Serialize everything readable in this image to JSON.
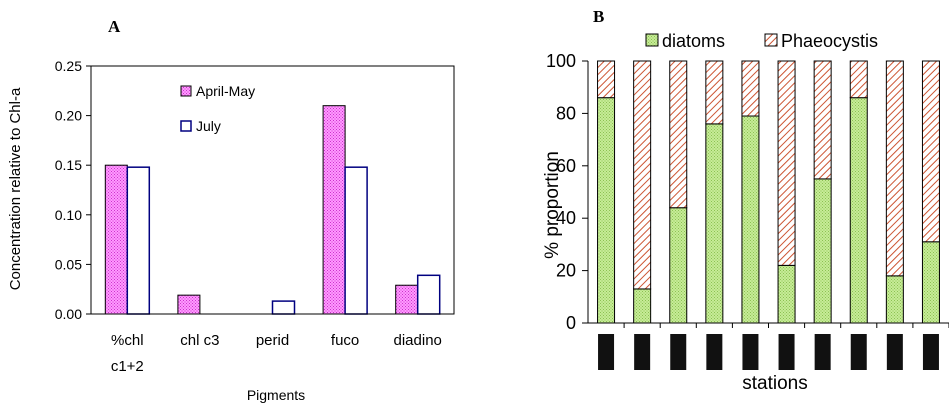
{
  "chart_data": [
    {
      "panel": "A",
      "type": "bar",
      "ylabel": "Concentration relative to Chl-a",
      "xlabel": "Pigments",
      "ylim": [
        0,
        0.25
      ],
      "yticks": [
        "0.00",
        "0.05",
        "0.10",
        "0.15",
        "0.20",
        "0.25"
      ],
      "categories": [
        [
          "%chl",
          "c1+2"
        ],
        [
          "chl c3"
        ],
        [
          "perid"
        ],
        [
          "fuco"
        ],
        [
          "diadino"
        ]
      ],
      "series": [
        {
          "name": "April-May",
          "color": "#ff66ff",
          "pattern": "dotted",
          "values": [
            0.15,
            0.019,
            0.0,
            0.21,
            0.029
          ]
        },
        {
          "name": "July",
          "color": "#000080",
          "pattern": "open",
          "values": [
            0.148,
            0.0,
            0.013,
            0.148,
            0.039
          ]
        }
      ],
      "legend_position": "upper-center inside plot"
    },
    {
      "panel": "B",
      "type": "bar",
      "stacked": true,
      "ylabel": "% proportion",
      "xlabel": "stations",
      "ylim": [
        0,
        100
      ],
      "yticks": [
        "0",
        "20",
        "40",
        "60",
        "80",
        "100"
      ],
      "categories": [
        "",
        "",
        "",
        "",
        "",
        "",
        "",
        "",
        "",
        ""
      ],
      "series": [
        {
          "name": "diatoms",
          "color": "#b3e07a",
          "pattern": "dotted",
          "values": [
            86,
            13,
            44,
            76,
            79,
            22,
            55,
            86,
            18,
            31
          ]
        },
        {
          "name": "Phaeocystis",
          "color": "#cc5533",
          "pattern": "diagonal-hatch",
          "values": [
            14,
            87,
            56,
            24,
            21,
            78,
            45,
            14,
            82,
            69
          ]
        }
      ],
      "legend_position": "top"
    }
  ]
}
